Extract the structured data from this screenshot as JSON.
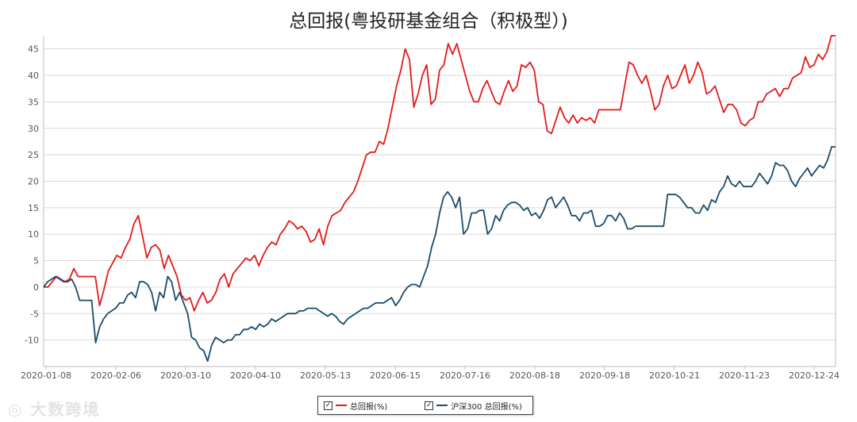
{
  "chart_data": {
    "type": "line",
    "title": "总回报(粤投研基金组合（积极型）)",
    "xlabel": "",
    "ylabel": "",
    "ylim": [
      -15,
      47.5
    ],
    "yticks": [
      -10,
      -5,
      0,
      5,
      10,
      15,
      20,
      25,
      30,
      35,
      40,
      45
    ],
    "x_tick_labels": [
      "2020-01-08",
      "2020-02-06",
      "2020-03-10",
      "2020-04-10",
      "2020-05-13",
      "2020-06-15",
      "2020-07-16",
      "2020-08-18",
      "2020-09-18",
      "2020-10-21",
      "2020-11-23",
      "2020-12-24"
    ],
    "grid": true,
    "legend_position": "bottom",
    "series": [
      {
        "name": "总回报(%)",
        "color": "#e31a1c",
        "values": [
          0,
          0,
          1,
          2,
          1.5,
          1,
          1.5,
          3.5,
          2,
          2,
          2,
          2,
          2,
          -3.5,
          -0.5,
          3,
          4.5,
          6,
          5.5,
          7.5,
          9,
          12,
          13.5,
          9.5,
          5.5,
          7.5,
          8,
          7,
          3.5,
          6,
          4,
          2,
          -1.5,
          -2.5,
          -2,
          -4.5,
          -2.5,
          -1,
          -3,
          -2.5,
          -1,
          1.5,
          2.5,
          0,
          2.5,
          3.5,
          4.5,
          5.5,
          5,
          6,
          4,
          6,
          7.5,
          8.5,
          8,
          10,
          11,
          12.5,
          12,
          11,
          11.5,
          10.5,
          8.5,
          9,
          11,
          8,
          11.5,
          13.5,
          14,
          14.5,
          16,
          17,
          18,
          20,
          22.5,
          25,
          25.5,
          25.5,
          27.5,
          27,
          30,
          34,
          38,
          41,
          45,
          43,
          34,
          36.5,
          40,
          42,
          34.5,
          35.5,
          41,
          42,
          46,
          44,
          46,
          43,
          40,
          37,
          35,
          35,
          37.5,
          39,
          37,
          35,
          34.5,
          37,
          39,
          37,
          38,
          42,
          41.5,
          42.5,
          41,
          35,
          34.5,
          29.5,
          29,
          31.5,
          34,
          32,
          31,
          32.5,
          31,
          32,
          31.5,
          32,
          31,
          33.5,
          33.5,
          33.5,
          33.5,
          33.5,
          33.5,
          38,
          42.5,
          42,
          40,
          38.5,
          40,
          37,
          33.5,
          34.5,
          38,
          40,
          37.5,
          38,
          40,
          42,
          38.5,
          40,
          42.5,
          40.5,
          36.5,
          37,
          38,
          35.5,
          33,
          34.5,
          34.5,
          33.5,
          31,
          30.5,
          31.5,
          32,
          35,
          35,
          36.5,
          37,
          37.5,
          36,
          37.5,
          37.5,
          39.5,
          40,
          40.5,
          43.5,
          41.5,
          42,
          44,
          43,
          44.5,
          47.5,
          47.5
        ]
      },
      {
        "name": "沪深300 总回报(%)",
        "color": "#1b4b6b",
        "values": [
          0,
          1,
          1.5,
          2,
          1.5,
          1,
          1,
          1.5,
          0,
          -2.5,
          -2.5,
          -2.5,
          -2.5,
          -10.5,
          -7.5,
          -6,
          -5,
          -4.5,
          -4,
          -3,
          -3,
          -1.5,
          -1,
          -2,
          1,
          1,
          0.5,
          -1,
          -4.5,
          -1,
          -2,
          2,
          1,
          -2.5,
          -1,
          -3,
          -5,
          -9.5,
          -10,
          -11.5,
          -12,
          -14,
          -11,
          -9.5,
          -10,
          -10.5,
          -10,
          -10,
          -9,
          -9,
          -8,
          -8,
          -7.5,
          -8,
          -7,
          -7.5,
          -7,
          -6,
          -6.5,
          -6,
          -5.5,
          -5,
          -5,
          -5,
          -4.5,
          -4.5,
          -4,
          -4,
          -4,
          -4.5,
          -5,
          -5.5,
          -5,
          -5.5,
          -6.5,
          -7,
          -6,
          -5.5,
          -5,
          -4.5,
          -4,
          -4,
          -3.5,
          -3,
          -3,
          -3,
          -2.5,
          -2,
          -3.5,
          -2.5,
          -1,
          0,
          0.5,
          0.5,
          0,
          2,
          4,
          7.5,
          10,
          14,
          17,
          18,
          17,
          15,
          17,
          10,
          11,
          14,
          14,
          14.5,
          14.5,
          10,
          11,
          13.5,
          12.5,
          14.5,
          15.5,
          16,
          16,
          15.5,
          14.5,
          15,
          13.5,
          14,
          13,
          14.5,
          16.5,
          17,
          15,
          16,
          17,
          15.5,
          13.5,
          13.5,
          12.5,
          14,
          14,
          14.5,
          11.5,
          11.5,
          12,
          13.5,
          13.5,
          12.5,
          14,
          13,
          11,
          11,
          11.5,
          11.5,
          11.5,
          11.5,
          11.5,
          11.5,
          11.5,
          11.5,
          17.5,
          17.5,
          17.5,
          17,
          16,
          15,
          15,
          14,
          14,
          15.5,
          14.5,
          16.5,
          16,
          18,
          19,
          21,
          19.5,
          19,
          20,
          19,
          19,
          19,
          20,
          21.5,
          20.5,
          19.5,
          21,
          23.5,
          23,
          23,
          22,
          20,
          19,
          20.5,
          21.5,
          22.5,
          21,
          22,
          23,
          22.5,
          24,
          26.5,
          26.5
        ]
      }
    ]
  },
  "watermark": "大数跨境"
}
